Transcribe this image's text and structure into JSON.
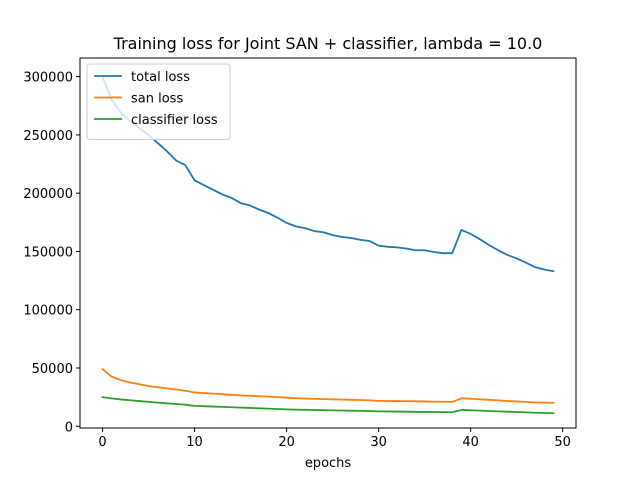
{
  "chart_data": {
    "type": "line",
    "title": "Training loss for Joint SAN + classifier, lambda = 10.0",
    "xlabel": "epochs",
    "ylabel": "",
    "xlim": [
      -2.45,
      51.45
    ],
    "ylim": [
      -1500,
      316000
    ],
    "xticks": [
      0,
      10,
      20,
      30,
      40,
      50
    ],
    "yticks": [
      0,
      50000,
      100000,
      150000,
      200000,
      250000,
      300000
    ],
    "grid": false,
    "legend_position": "top-left",
    "x": [
      0,
      1,
      2,
      3,
      4,
      5,
      6,
      7,
      8,
      9,
      10,
      11,
      12,
      13,
      14,
      15,
      16,
      17,
      18,
      19,
      20,
      21,
      22,
      23,
      24,
      25,
      26,
      27,
      28,
      29,
      30,
      31,
      32,
      33,
      34,
      35,
      36,
      37,
      38,
      39,
      40,
      41,
      42,
      43,
      44,
      45,
      46,
      47,
      48,
      49
    ],
    "series": [
      {
        "name": "total loss",
        "color": "#1f77b4",
        "values": [
          300000,
          280000,
          269000,
          262000,
          256000,
          250000,
          243000,
          236000,
          228000,
          224000,
          211000,
          207000,
          203000,
          199000,
          196000,
          191500,
          189500,
          186000,
          183000,
          179000,
          174500,
          171500,
          170000,
          167500,
          166500,
          164000,
          162500,
          161500,
          160000,
          159000,
          155000,
          154000,
          153500,
          152500,
          151000,
          151000,
          149500,
          148500,
          148500,
          168500,
          165000,
          160500,
          155500,
          151000,
          147000,
          144000,
          140500,
          136500,
          134500,
          133000
        ]
      },
      {
        "name": "san loss",
        "color": "#ff7f0e",
        "values": [
          49000,
          42500,
          39500,
          37500,
          36000,
          34500,
          33500,
          32500,
          31500,
          30500,
          29000,
          28500,
          28000,
          27500,
          27000,
          26500,
          26200,
          25800,
          25400,
          25000,
          24500,
          24100,
          23800,
          23500,
          23300,
          23100,
          22900,
          22700,
          22500,
          22300,
          21800,
          21700,
          21600,
          21500,
          21400,
          21300,
          21100,
          21000,
          20900,
          24000,
          23600,
          23100,
          22700,
          22200,
          21700,
          21300,
          20900,
          20500,
          20300,
          20100
        ]
      },
      {
        "name": "classifier loss",
        "color": "#2ca02c",
        "values": [
          25000,
          23900,
          23000,
          22300,
          21600,
          20900,
          20300,
          19700,
          19100,
          18500,
          17500,
          17200,
          16900,
          16600,
          16300,
          16000,
          15700,
          15400,
          15100,
          14800,
          14500,
          14300,
          14100,
          13950,
          13800,
          13650,
          13500,
          13350,
          13200,
          13050,
          12800,
          12700,
          12600,
          12500,
          12400,
          12300,
          12200,
          12100,
          12000,
          14000,
          13700,
          13400,
          13100,
          12800,
          12500,
          12200,
          11900,
          11600,
          11400,
          11200
        ]
      }
    ]
  }
}
